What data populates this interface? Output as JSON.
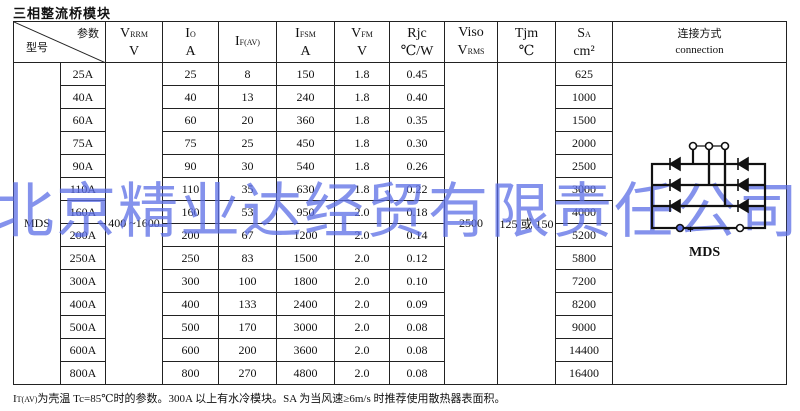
{
  "title": "三相整流桥模块",
  "header": {
    "param": "参数",
    "model": "型号",
    "cols": [
      {
        "sym": "V",
        "sub": "RRM",
        "unit": "V"
      },
      {
        "sym": "I",
        "sub": "O",
        "unit": "A"
      },
      {
        "sym": "I",
        "sub": "F(AV)",
        "unit": ""
      },
      {
        "sym": "I",
        "sub": "FSM",
        "unit": "A"
      },
      {
        "sym": "V",
        "sub": "FM",
        "unit": "V"
      },
      {
        "sym": "Rjc",
        "sub": "",
        "unit": "℃/W"
      },
      {
        "sym": "Viso",
        "sub": "",
        "unit": "V",
        "unit_sub": "RMS"
      },
      {
        "sym": "Tjm",
        "sub": "",
        "unit": "℃"
      },
      {
        "sym": "S",
        "sub": "A",
        "unit": "cm²"
      }
    ],
    "connection_cn": "连接方式",
    "connection_en": "connection"
  },
  "series": "MDS",
  "vrrm": "400 ~1600",
  "viso": "2500",
  "tjm": "125 或 150",
  "rows": [
    [
      "25A",
      "25",
      "8",
      "150",
      "1.8",
      "0.45",
      "625"
    ],
    [
      "40A",
      "40",
      "13",
      "240",
      "1.8",
      "0.40",
      "1000"
    ],
    [
      "60A",
      "60",
      "20",
      "360",
      "1.8",
      "0.35",
      "1500"
    ],
    [
      "75A",
      "75",
      "25",
      "450",
      "1.8",
      "0.30",
      "2000"
    ],
    [
      "90A",
      "90",
      "30",
      "540",
      "1.8",
      "0.26",
      "2500"
    ],
    [
      "110A",
      "110",
      "35",
      "630",
      "1.8",
      "0.22",
      "3000"
    ],
    [
      "160A",
      "160",
      "53",
      "950",
      "2.0",
      "0.18",
      "4000"
    ],
    [
      "200A",
      "200",
      "67",
      "1200",
      "2.0",
      "0.14",
      "5200"
    ],
    [
      "250A",
      "250",
      "83",
      "1500",
      "2.0",
      "0.12",
      "5800"
    ],
    [
      "300A",
      "300",
      "100",
      "1800",
      "2.0",
      "0.10",
      "7200"
    ],
    [
      "400A",
      "400",
      "133",
      "2400",
      "2.0",
      "0.09",
      "8200"
    ],
    [
      "500A",
      "500",
      "170",
      "3000",
      "2.0",
      "0.08",
      "9000"
    ],
    [
      "600A",
      "600",
      "200",
      "3600",
      "2.0",
      "0.08",
      "14400"
    ],
    [
      "800A",
      "800",
      "270",
      "4800",
      "2.0",
      "0.08",
      "16400"
    ]
  ],
  "diagram": {
    "label": "MDS",
    "plus": "+",
    "minus": "−"
  },
  "note": {
    "sym": "I",
    "sub": "T(AV)",
    "text": "为壳温 Tc=85℃时的参数。300A 以上有水冷模块。SA 为当风速≥6m/s 时推荐使用散热器表面积。"
  },
  "watermark": "北京精业达经贸有限责任公司"
}
